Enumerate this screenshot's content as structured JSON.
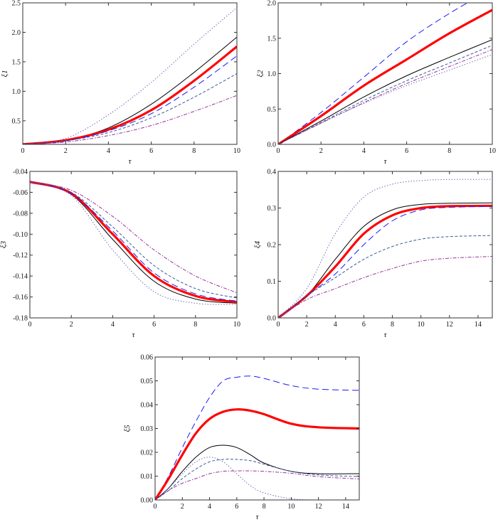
{
  "chart_data": [
    {
      "type": "line",
      "xlabel": "τ",
      "ylabel": "ξ1",
      "xlim": [
        0,
        10
      ],
      "ylim": [
        0.1,
        2.5
      ],
      "xticks": [
        0,
        2,
        4,
        6,
        8,
        10
      ],
      "yticks": [
        0.5,
        1.0,
        1.5,
        2.0,
        2.5
      ],
      "ytick_digits": 1,
      "x": [
        0,
        2,
        4,
        6,
        8,
        10
      ],
      "series": [
        {
          "style": "dotted",
          "color": "#5a5aaa",
          "values": [
            0.1,
            0.2,
            0.6,
            1.15,
            1.8,
            2.42
          ]
        },
        {
          "style": "solid",
          "color": "#000000",
          "values": [
            0.1,
            0.17,
            0.38,
            0.78,
            1.32,
            1.92
          ]
        },
        {
          "style": "thick",
          "color": "#ff0000",
          "values": [
            0.1,
            0.17,
            0.35,
            0.68,
            1.18,
            1.76
          ]
        },
        {
          "style": "longdash",
          "color": "#1a1aff",
          "values": [
            0.1,
            0.16,
            0.33,
            0.62,
            1.07,
            1.6
          ]
        },
        {
          "style": "dashed",
          "color": "#3a5a9a",
          "values": [
            0.1,
            0.16,
            0.3,
            0.55,
            0.9,
            1.3
          ]
        },
        {
          "style": "dotdash",
          "color": "#993399",
          "values": [
            0.1,
            0.14,
            0.25,
            0.42,
            0.66,
            0.93
          ]
        }
      ]
    },
    {
      "type": "line",
      "xlabel": "τ",
      "ylabel": "ξ2",
      "xlim": [
        0,
        10
      ],
      "ylim": [
        0,
        2
      ],
      "xticks": [
        0,
        2,
        4,
        6,
        8,
        10
      ],
      "yticks": [
        0.0,
        0.5,
        1.0,
        1.5,
        2.0
      ],
      "ytick_digits": 1,
      "x": [
        0,
        2,
        4,
        6,
        8,
        10
      ],
      "series": [
        {
          "style": "longdash",
          "color": "#1a1aff",
          "values": [
            0,
            0.45,
            0.95,
            1.45,
            1.85,
            2.2
          ]
        },
        {
          "style": "thick",
          "color": "#ff0000",
          "values": [
            0,
            0.4,
            0.83,
            1.2,
            1.57,
            1.9
          ]
        },
        {
          "style": "solid",
          "color": "#000000",
          "values": [
            0,
            0.33,
            0.67,
            0.97,
            1.23,
            1.48
          ]
        },
        {
          "style": "dashed",
          "color": "#3a5a9a",
          "values": [
            0,
            0.31,
            0.62,
            0.9,
            1.15,
            1.4
          ]
        },
        {
          "style": "dotdash",
          "color": "#993399",
          "values": [
            0,
            0.3,
            0.59,
            0.86,
            1.1,
            1.34
          ]
        },
        {
          "style": "dotted",
          "color": "#5a5aaa",
          "values": [
            0,
            0.3,
            0.58,
            0.83,
            1.05,
            1.27
          ]
        }
      ]
    },
    {
      "type": "line",
      "xlabel": "τ",
      "ylabel": "ξ3",
      "xlim": [
        0,
        10
      ],
      "ylim": [
        -0.18,
        -0.04
      ],
      "xticks": [
        0,
        2,
        4,
        6,
        8,
        10
      ],
      "yticks": [
        -0.18,
        -0.16,
        -0.14,
        -0.12,
        -0.1,
        -0.08,
        -0.06,
        -0.04
      ],
      "ytick_digits": 2,
      "x": [
        0,
        2,
        4,
        6,
        8,
        10
      ],
      "series": [
        {
          "style": "dotted",
          "color": "#5a5aaa",
          "values": [
            -0.05,
            -0.063,
            -0.115,
            -0.155,
            -0.166,
            -0.167
          ]
        },
        {
          "style": "solid",
          "color": "#000000",
          "values": [
            -0.05,
            -0.062,
            -0.105,
            -0.145,
            -0.162,
            -0.166
          ]
        },
        {
          "style": "thick",
          "color": "#ff0000",
          "values": [
            -0.05,
            -0.061,
            -0.1,
            -0.14,
            -0.159,
            -0.165
          ]
        },
        {
          "style": "longdash",
          "color": "#1a1aff",
          "values": [
            -0.05,
            -0.061,
            -0.097,
            -0.137,
            -0.157,
            -0.164
          ]
        },
        {
          "style": "dashed",
          "color": "#3a5a9a",
          "values": [
            -0.05,
            -0.06,
            -0.093,
            -0.13,
            -0.152,
            -0.161
          ]
        },
        {
          "style": "dotdash",
          "color": "#993399",
          "values": [
            -0.05,
            -0.058,
            -0.083,
            -0.115,
            -0.14,
            -0.156
          ]
        }
      ]
    },
    {
      "type": "line",
      "xlabel": "τ",
      "ylabel": "ξ4",
      "xlim": [
        0,
        15
      ],
      "ylim": [
        0,
        0.4
      ],
      "xticks": [
        0,
        2,
        4,
        6,
        8,
        10,
        12,
        14
      ],
      "yticks": [
        0.0,
        0.1,
        0.2,
        0.3,
        0.4
      ],
      "ytick_digits": 1,
      "x": [
        0,
        2,
        4,
        6,
        8,
        10,
        12,
        15
      ],
      "series": [
        {
          "style": "dotted",
          "color": "#5a5aaa",
          "values": [
            0,
            0.08,
            0.23,
            0.33,
            0.365,
            0.375,
            0.378,
            0.378
          ]
        },
        {
          "style": "solid",
          "color": "#000000",
          "values": [
            0,
            0.06,
            0.16,
            0.25,
            0.295,
            0.31,
            0.313,
            0.314
          ]
        },
        {
          "style": "thick",
          "color": "#ff0000",
          "values": [
            0,
            0.06,
            0.14,
            0.23,
            0.28,
            0.3,
            0.305,
            0.306
          ]
        },
        {
          "style": "longdash",
          "color": "#1a1aff",
          "values": [
            0,
            0.06,
            0.12,
            0.2,
            0.265,
            0.295,
            0.302,
            0.304
          ]
        },
        {
          "style": "dashed",
          "color": "#3a5a9a",
          "values": [
            0,
            0.06,
            0.11,
            0.16,
            0.195,
            0.215,
            0.222,
            0.225
          ]
        },
        {
          "style": "dotdash",
          "color": "#993399",
          "values": [
            0,
            0.05,
            0.08,
            0.11,
            0.135,
            0.155,
            0.163,
            0.168
          ]
        }
      ]
    },
    {
      "type": "line",
      "xlabel": "τ",
      "ylabel": "ξ5",
      "xlim": [
        0,
        15
      ],
      "ylim": [
        0,
        0.06
      ],
      "xticks": [
        0,
        2,
        4,
        6,
        8,
        10,
        12,
        14
      ],
      "yticks": [
        0.0,
        0.01,
        0.02,
        0.03,
        0.04,
        0.05,
        0.06
      ],
      "ytick_digits": 2,
      "x": [
        0,
        1,
        2,
        3,
        4,
        5,
        6,
        7,
        8,
        10,
        12,
        15
      ],
      "series": [
        {
          "style": "longdash",
          "color": "#1a1aff",
          "values": [
            0,
            0.01,
            0.022,
            0.033,
            0.043,
            0.05,
            0.0515,
            0.052,
            0.051,
            0.048,
            0.0465,
            0.046
          ]
        },
        {
          "style": "thick",
          "color": "#ff0000",
          "values": [
            0,
            0.009,
            0.019,
            0.028,
            0.034,
            0.037,
            0.038,
            0.0375,
            0.036,
            0.032,
            0.0305,
            0.03
          ]
        },
        {
          "style": "solid",
          "color": "#000000",
          "values": [
            0,
            0.005,
            0.012,
            0.018,
            0.022,
            0.023,
            0.022,
            0.019,
            0.0155,
            0.012,
            0.011,
            0.011
          ]
        },
        {
          "style": "dashed",
          "color": "#3a5a9a",
          "values": [
            0,
            0.004,
            0.009,
            0.013,
            0.016,
            0.017,
            0.017,
            0.0165,
            0.015,
            0.012,
            0.0105,
            0.0098
          ]
        },
        {
          "style": "dotdash",
          "color": "#993399",
          "values": [
            0,
            0.004,
            0.007,
            0.009,
            0.011,
            0.012,
            0.0122,
            0.0122,
            0.012,
            0.0112,
            0.0098,
            0.0088
          ]
        },
        {
          "style": "dotted",
          "color": "#5a5aaa",
          "values": [
            0,
            0.005,
            0.011,
            0.016,
            0.018,
            0.016,
            0.011,
            0.006,
            0.003,
            0.0005,
            0,
            0
          ]
        }
      ]
    }
  ]
}
